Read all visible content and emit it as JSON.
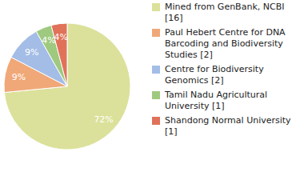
{
  "chart_data": {
    "type": "pie",
    "categories": [
      "Mined from GenBank, NCBI [16]",
      "Paul Hebert Centre for DNA Barcoding and Biodiversity Studies [2]",
      "Centre for Biodiversity Genomics [2]",
      "Tamil Nadu Agricultural University [1]",
      "Shandong Normal University [1]"
    ],
    "values": [
      72,
      9,
      9,
      4,
      4
    ],
    "value_labels": [
      "72%",
      "9%",
      "9%",
      "4%",
      "4%"
    ],
    "colors": [
      "#dbe19a",
      "#f0a878",
      "#a3bde6",
      "#9fc97e",
      "#e07259"
    ],
    "legend": "right",
    "data_labels": true
  }
}
